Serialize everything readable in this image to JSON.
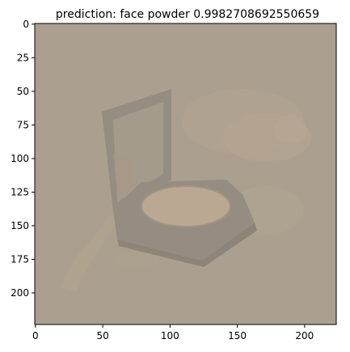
{
  "title": "prediction: face powder 0.9982708692550659",
  "axes": {
    "x": {
      "ticks": [
        0,
        50,
        100,
        150,
        200
      ],
      "range": [
        0,
        224
      ]
    },
    "y": {
      "ticks": [
        0,
        25,
        50,
        75,
        100,
        125,
        150,
        175,
        200
      ],
      "range": [
        0,
        224
      ]
    }
  },
  "image": {
    "subject": "face powder compact with open mirror and scattered loose powder",
    "colors": {
      "background": "#aba08f",
      "compact_dark": "#8e877d",
      "powder_pan": "#c0ab93",
      "mirror": "#a39a8b",
      "powder_dust": "#c2b39b"
    }
  }
}
